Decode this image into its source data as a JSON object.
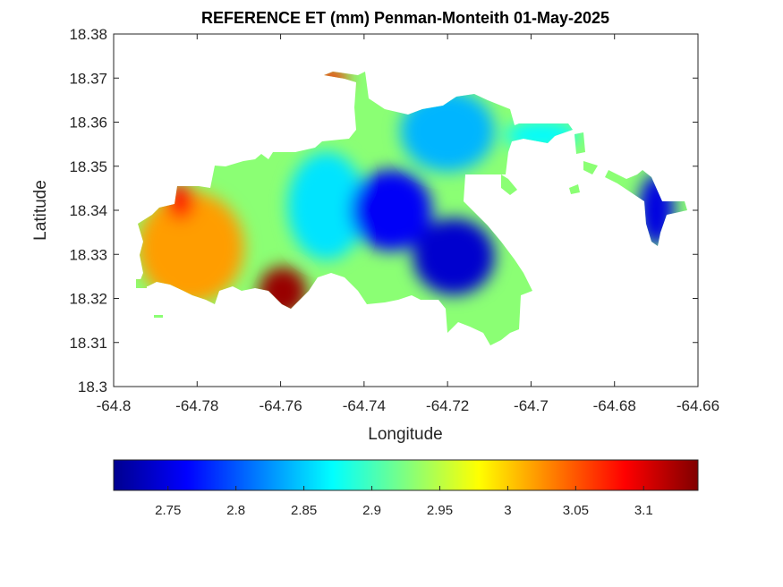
{
  "chart_data": {
    "type": "heatmap",
    "title": "REFERENCE ET (mm) Penman-Monteith 01-May-2025",
    "xlabel": "Longitude",
    "ylabel": "Latitude",
    "xlim": [
      -64.8,
      -64.66
    ],
    "ylim": [
      18.3,
      18.38
    ],
    "x_ticks": [
      "-64.8",
      "-64.78",
      "-64.76",
      "-64.74",
      "-64.72",
      "-64.7",
      "-64.68",
      "-64.66"
    ],
    "y_ticks": [
      "18.3",
      "18.31",
      "18.32",
      "18.33",
      "18.34",
      "18.35",
      "18.36",
      "18.37",
      "18.38"
    ],
    "colormap": "jet",
    "colorbar": {
      "range": [
        2.71,
        3.14
      ],
      "ticks": [
        "2.75",
        "2.8",
        "2.85",
        "2.9",
        "2.95",
        "3",
        "3.05",
        "3.1"
      ],
      "placement": "bottom"
    },
    "regions": [
      {
        "name": "west",
        "lon": [
          -64.793,
          -64.77
        ],
        "lat": [
          18.32,
          18.343
        ],
        "value": 3.02
      },
      {
        "name": "west-peak",
        "lon": [
          -64.786,
          -64.782
        ],
        "lat": [
          18.339,
          18.345
        ],
        "value": 3.08
      },
      {
        "name": "south-central-peak",
        "lon": [
          -64.764,
          -64.755
        ],
        "lat": [
          18.317,
          18.326
        ],
        "value": 3.13
      },
      {
        "name": "north-tip",
        "lon": [
          -64.751,
          -64.745
        ],
        "lat": [
          18.369,
          18.371
        ],
        "value": 3.07
      },
      {
        "name": "central",
        "lon": [
          -64.757,
          -64.741
        ],
        "lat": [
          18.33,
          18.352
        ],
        "value": 2.86
      },
      {
        "name": "center-low",
        "lon": [
          -64.742,
          -64.725
        ],
        "lat": [
          18.332,
          18.348
        ],
        "value": 2.76
      },
      {
        "name": "south-east-low",
        "lon": [
          -64.727,
          -64.71
        ],
        "lat": [
          18.322,
          18.337
        ],
        "value": 2.74
      },
      {
        "name": "north-east",
        "lon": [
          -64.73,
          -64.71
        ],
        "lat": [
          18.35,
          18.366
        ],
        "value": 2.84
      },
      {
        "name": "east-strip",
        "lon": [
          -64.705,
          -64.69
        ],
        "lat": [
          18.355,
          18.359
        ],
        "value": 2.87
      },
      {
        "name": "far-east",
        "lon": [
          -64.673,
          -64.667
        ],
        "lat": [
          18.333,
          18.347
        ],
        "value": 2.75
      }
    ]
  }
}
